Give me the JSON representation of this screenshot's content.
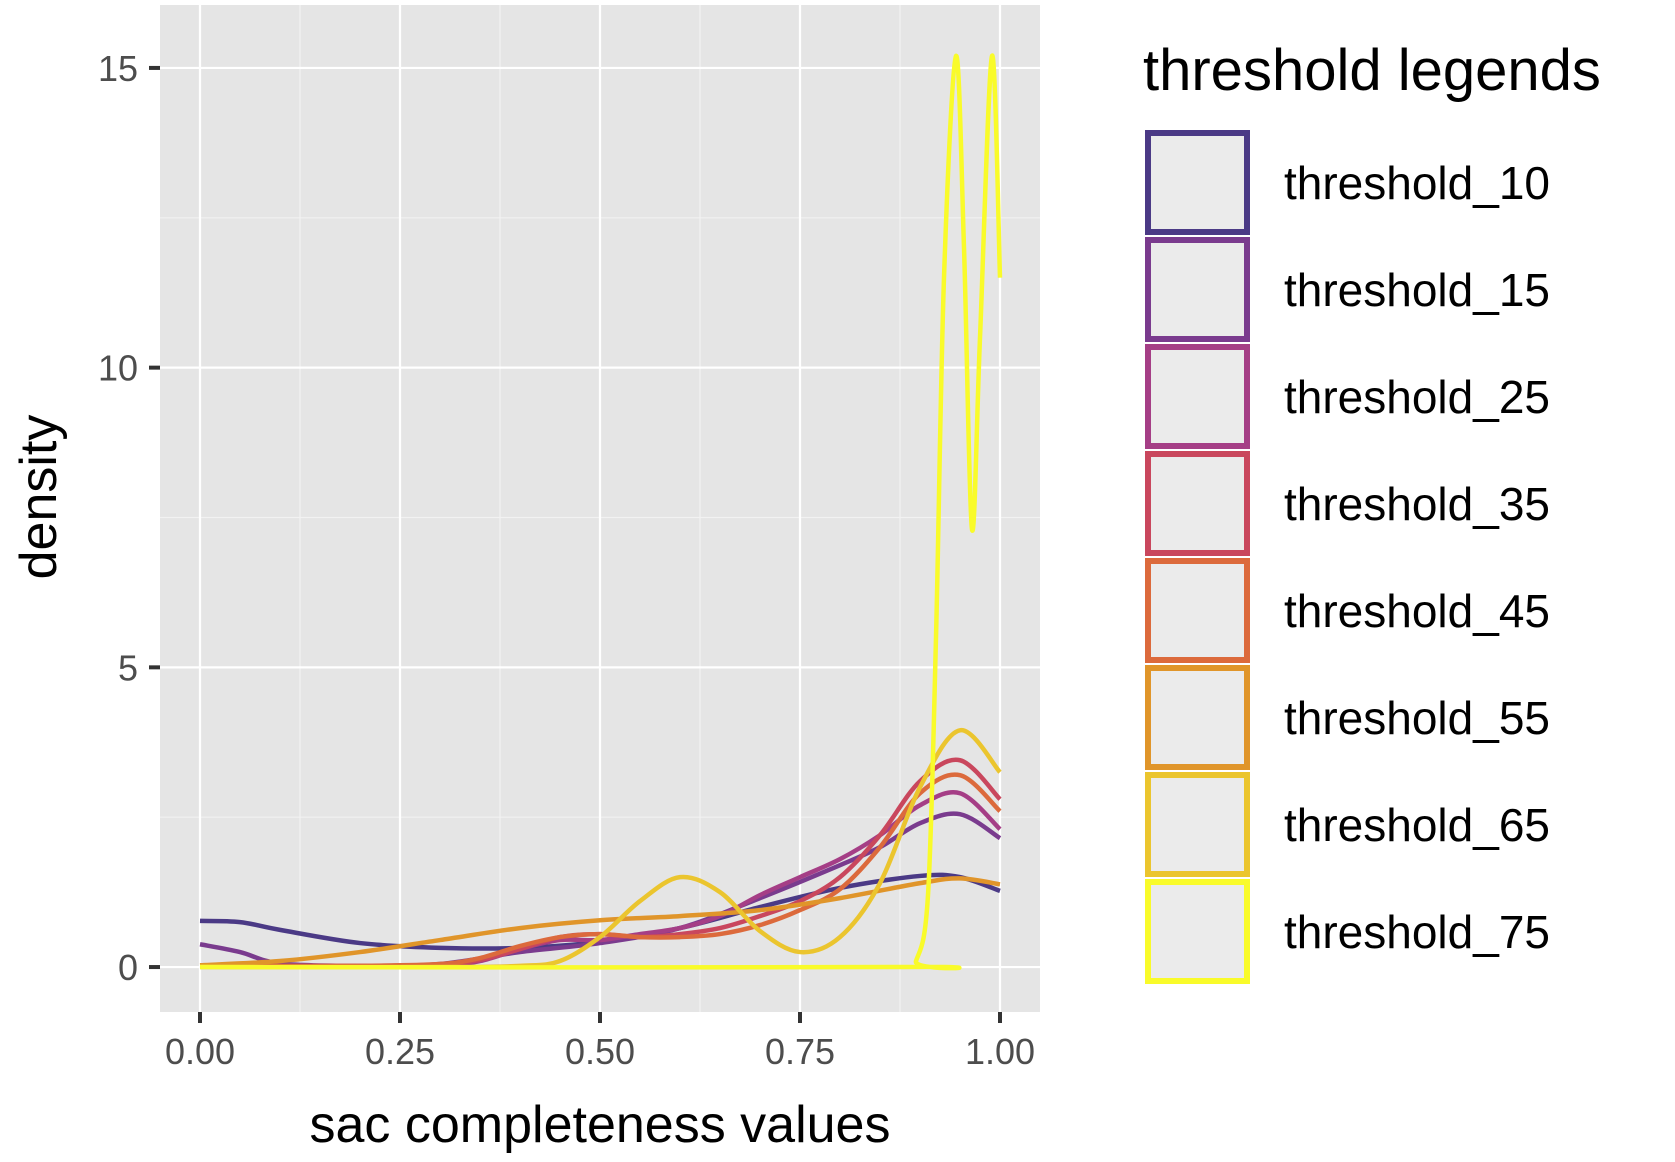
{
  "chart_data": {
    "type": "line",
    "xlabel": "sac completeness values",
    "ylabel": "density",
    "xlim": [
      -0.05,
      1.05
    ],
    "ylim": [
      -0.75,
      16.05
    ],
    "xticks": [
      0,
      0.25,
      0.5,
      0.75,
      1
    ],
    "xtick_labels": [
      "0.00",
      "0.25",
      "0.50",
      "0.75",
      "1.00"
    ],
    "yticks": [
      0,
      5,
      10,
      15
    ],
    "ytick_labels": [
      "0",
      "5",
      "10",
      "15"
    ],
    "grid": true,
    "legend": {
      "title": "threshold legends",
      "placement": "right"
    },
    "series": [
      {
        "name": "threshold_10",
        "color": "#4b3a86",
        "x": [
          0,
          0.05,
          0.1,
          0.2,
          0.3,
          0.4,
          0.5,
          0.6,
          0.7,
          0.8,
          0.9,
          0.95,
          1.0
        ],
        "y": [
          0.77,
          0.75,
          0.62,
          0.4,
          0.32,
          0.32,
          0.42,
          0.65,
          1.0,
          1.32,
          1.52,
          1.5,
          1.27
        ]
      },
      {
        "name": "threshold_15",
        "color": "#7a3b8e",
        "x": [
          0,
          0.05,
          0.1,
          0.2,
          0.3,
          0.4,
          0.5,
          0.6,
          0.7,
          0.8,
          0.85,
          0.9,
          0.95,
          1.0
        ],
        "y": [
          0.38,
          0.25,
          0.06,
          0.02,
          0.05,
          0.25,
          0.4,
          0.65,
          1.15,
          1.7,
          2.0,
          2.4,
          2.55,
          2.15
        ]
      },
      {
        "name": "threshold_25",
        "color": "#a53e86",
        "x": [
          0,
          0.1,
          0.2,
          0.3,
          0.35,
          0.4,
          0.45,
          0.5,
          0.55,
          0.6,
          0.65,
          0.7,
          0.75,
          0.8,
          0.85,
          0.9,
          0.95,
          1.0
        ],
        "y": [
          0.02,
          0.02,
          0.02,
          0.03,
          0.1,
          0.3,
          0.45,
          0.45,
          0.55,
          0.65,
          0.85,
          1.2,
          1.5,
          1.8,
          2.2,
          2.7,
          2.9,
          2.3
        ]
      },
      {
        "name": "threshold_35",
        "color": "#c9475d",
        "x": [
          0,
          0.2,
          0.3,
          0.35,
          0.4,
          0.45,
          0.5,
          0.55,
          0.6,
          0.65,
          0.7,
          0.75,
          0.8,
          0.85,
          0.9,
          0.95,
          1.0
        ],
        "y": [
          0.02,
          0.02,
          0.04,
          0.12,
          0.3,
          0.5,
          0.55,
          0.5,
          0.55,
          0.65,
          0.85,
          1.1,
          1.5,
          2.2,
          3.1,
          3.45,
          2.8
        ]
      },
      {
        "name": "threshold_45",
        "color": "#dc6a3c",
        "x": [
          0,
          0.2,
          0.3,
          0.35,
          0.4,
          0.45,
          0.5,
          0.55,
          0.6,
          0.65,
          0.7,
          0.75,
          0.8,
          0.85,
          0.9,
          0.95,
          1.0
        ],
        "y": [
          0.02,
          0.02,
          0.05,
          0.15,
          0.35,
          0.5,
          0.55,
          0.5,
          0.5,
          0.55,
          0.7,
          0.95,
          1.3,
          2.0,
          2.9,
          3.2,
          2.6
        ]
      },
      {
        "name": "threshold_55",
        "color": "#e0952a",
        "x": [
          0,
          0.1,
          0.2,
          0.3,
          0.4,
          0.5,
          0.6,
          0.7,
          0.8,
          0.9,
          0.95,
          1.0
        ],
        "y": [
          0.03,
          0.1,
          0.25,
          0.45,
          0.65,
          0.78,
          0.85,
          0.95,
          1.15,
          1.4,
          1.48,
          1.38
        ]
      },
      {
        "name": "threshold_65",
        "color": "#ebc52e",
        "x": [
          0,
          0.3,
          0.4,
          0.45,
          0.5,
          0.55,
          0.6,
          0.65,
          0.7,
          0.75,
          0.8,
          0.85,
          0.9,
          0.95,
          1.0
        ],
        "y": [
          0,
          0,
          0.02,
          0.1,
          0.5,
          1.1,
          1.5,
          1.25,
          0.6,
          0.25,
          0.5,
          1.4,
          3.0,
          3.95,
          3.25
        ]
      },
      {
        "name": "threshold_75",
        "color": "#f9fb2a",
        "x": [
          0,
          0.88,
          0.895,
          0.91,
          0.92,
          0.93,
          0.945,
          0.955,
          0.965,
          0.975,
          0.99,
          1.0
        ],
        "y": [
          0,
          0,
          0.1,
          1.2,
          5.5,
          11.5,
          15.2,
          12.0,
          7.3,
          10.5,
          15.2,
          11.5
        ]
      }
    ]
  }
}
